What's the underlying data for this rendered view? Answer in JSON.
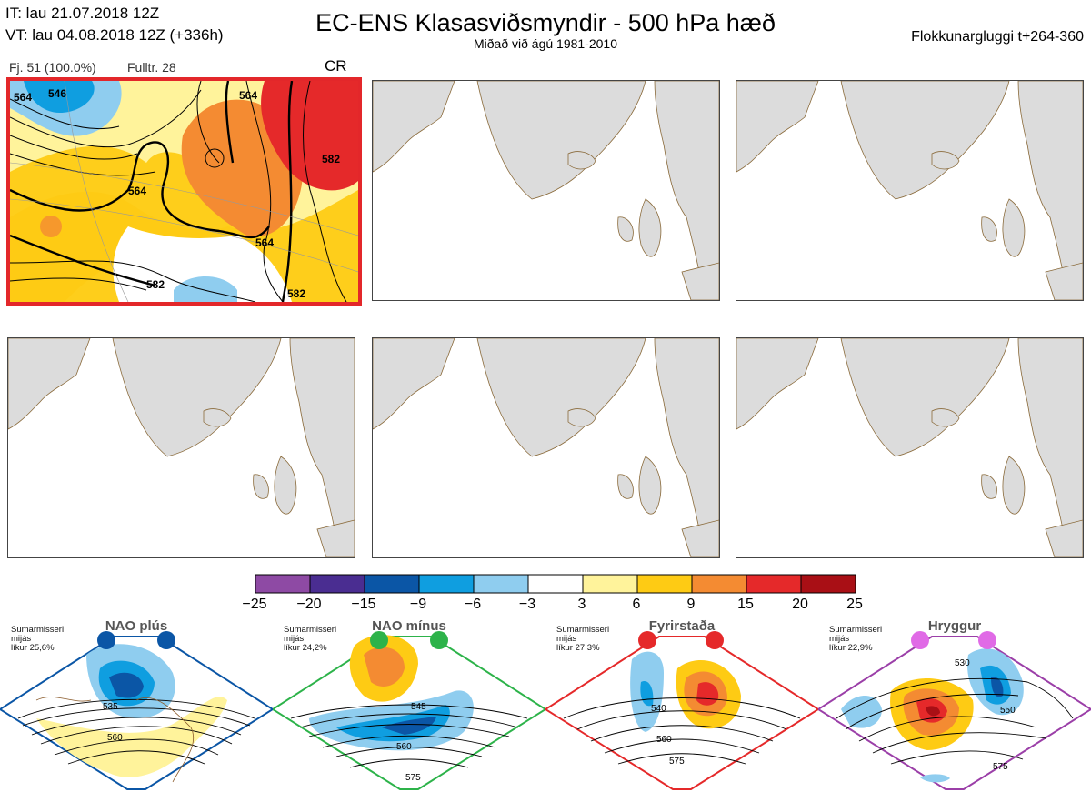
{
  "header": {
    "it_line": "IT: lau 21.07.2018 12Z",
    "vt_line": "VT: lau 04.08.2018 12Z  (+336h)",
    "title": "EC-ENS Klasasviðsmyndir - 500 hPa hæð",
    "subtitle": "Miðað við ágú 1981-2010",
    "window": "Flokkunargluggi t+264-360"
  },
  "main_panel": {
    "members": "Fj. 51 (100.0%)",
    "control": "Fulltr. 28",
    "class_code": "CR",
    "contour_labels": [
      "564",
      "546",
      "564",
      "564",
      "582",
      "564",
      "582",
      "582"
    ]
  },
  "colorbar": {
    "colors": [
      "#8e4aa4",
      "#4a2d91",
      "#0b56a6",
      "#0f9ee0",
      "#8fcdef",
      "#ffffff",
      "#fff39b",
      "#fecb14",
      "#f48b32",
      "#e5292a",
      "#a90f15"
    ],
    "labels": [
      "−25",
      "−20",
      "−15",
      "−9",
      "−6",
      "−3",
      "3",
      "6",
      "9",
      "15",
      "20",
      "25"
    ]
  },
  "regimes": [
    {
      "name": "NAO plús",
      "note": [
        "Sumarmisseri",
        "mijás",
        "líkur 25,6%"
      ],
      "color": "#0b56a6",
      "labels": [
        "535",
        "560"
      ]
    },
    {
      "name": "NAO mínus",
      "note": [
        "Sumarmisseri",
        "mijás",
        "líkur 24,2%"
      ],
      "color": "#2db34a",
      "labels": [
        "545",
        "560",
        "575"
      ]
    },
    {
      "name": "Fyrirstaða",
      "note": [
        "Sumarmisseri",
        "mijás",
        "líkur 27,3%"
      ],
      "color": "#e5292a",
      "labels": [
        "540",
        "560",
        "575"
      ]
    },
    {
      "name": "Hryggur",
      "note": [
        "Sumarmisseri",
        "mijás",
        "líkur 22,9%"
      ],
      "color": "#e06ae6",
      "labels": [
        "530",
        "550",
        "575"
      ]
    }
  ],
  "chart_data": {
    "type": "heatmap",
    "title": "EC-ENS Klasasviðsmyndir - 500 hPa hæð",
    "subtitle": "Miðað við ágú 1981-2010",
    "colorbar_values": [
      -25,
      -20,
      -15,
      -9,
      -6,
      -3,
      3,
      6,
      9,
      15,
      20,
      25
    ],
    "panels": [
      {
        "members": "Fj. 51 (100.0%)",
        "control": "Fulltr. 28",
        "class": "CR"
      }
    ],
    "regime_probabilities": [
      {
        "regime": "NAO plús",
        "probability_pct": 25.6
      },
      {
        "regime": "NAO mínus",
        "probability_pct": 24.2
      },
      {
        "regime": "Fyrirstaða",
        "probability_pct": 27.3
      },
      {
        "regime": "Hryggur",
        "probability_pct": 22.9
      }
    ]
  }
}
